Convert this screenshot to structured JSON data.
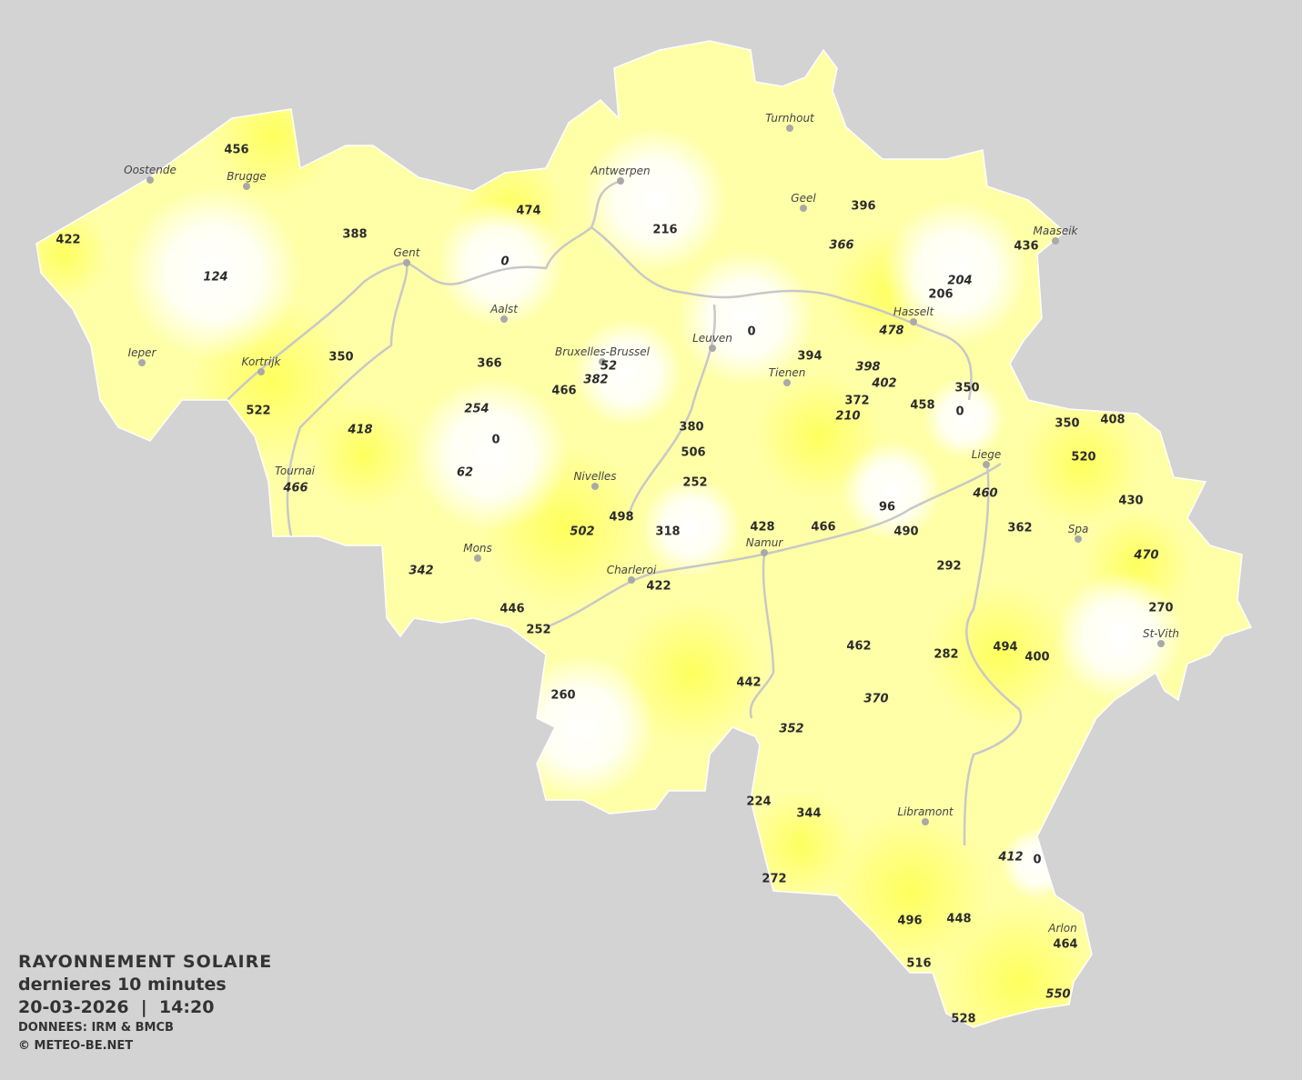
{
  "map": {
    "title": "RAYONNEMENT SOLAIRE",
    "period": "dernieres 10 minutes",
    "datetime": "20-03-2026  |  14:20",
    "source": "DONNEES: IRM & BMCB",
    "copyright": "© METEO-BE.NET",
    "colors": {
      "background": "#d3d3d3",
      "low": "#ffffff",
      "high": "#ffff66",
      "rivers": "#c8c8c8"
    },
    "cities": [
      "Oostende",
      "Brugge",
      "Gent",
      "Antwerpen",
      "Turnhout",
      "Geel",
      "Maaseik",
      "Hasselt",
      "Leuven",
      "Tienen",
      "Aalst",
      "Bruxelles-Brussel",
      "Ieper",
      "Kortrijk",
      "Tournai",
      "Nivelles",
      "Mons",
      "Charleroi",
      "Namur",
      "Liege",
      "Spa",
      "St-Vith",
      "Libramont",
      "Arlon"
    ],
    "values": [
      {
        "v": "456"
      },
      {
        "v": "422"
      },
      {
        "v": "124",
        "italic": true
      },
      {
        "v": "388"
      },
      {
        "v": "474"
      },
      {
        "v": "0",
        "italic": true
      },
      {
        "v": "216"
      },
      {
        "v": "396"
      },
      {
        "v": "366",
        "italic": true
      },
      {
        "v": "436"
      },
      {
        "v": "204",
        "italic": true
      },
      {
        "v": "206"
      },
      {
        "v": "478",
        "italic": true
      },
      {
        "v": "0"
      },
      {
        "v": "394"
      },
      {
        "v": "398",
        "italic": true
      },
      {
        "v": "402",
        "italic": true
      },
      {
        "v": "372"
      },
      {
        "v": "210",
        "italic": true
      },
      {
        "v": "458"
      },
      {
        "v": "350"
      },
      {
        "v": "0"
      },
      {
        "v": "350"
      },
      {
        "v": "366"
      },
      {
        "v": "52",
        "italic": true
      },
      {
        "v": "382",
        "italic": true
      },
      {
        "v": "466"
      },
      {
        "v": "522"
      },
      {
        "v": "418",
        "italic": true
      },
      {
        "v": "254",
        "italic": true
      },
      {
        "v": "0"
      },
      {
        "v": "62",
        "italic": true
      },
      {
        "v": "466",
        "italic": true
      },
      {
        "v": "380"
      },
      {
        "v": "506"
      },
      {
        "v": "252"
      },
      {
        "v": "498"
      },
      {
        "v": "502",
        "italic": true
      },
      {
        "v": "318"
      },
      {
        "v": "428"
      },
      {
        "v": "466"
      },
      {
        "v": "96"
      },
      {
        "v": "490"
      },
      {
        "v": "460",
        "italic": true
      },
      {
        "v": "350"
      },
      {
        "v": "408"
      },
      {
        "v": "520"
      },
      {
        "v": "430"
      },
      {
        "v": "362"
      },
      {
        "v": "470",
        "italic": true
      },
      {
        "v": "292"
      },
      {
        "v": "270"
      },
      {
        "v": "342",
        "italic": true
      },
      {
        "v": "422"
      },
      {
        "v": "446"
      },
      {
        "v": "252"
      },
      {
        "v": "462"
      },
      {
        "v": "282"
      },
      {
        "v": "494"
      },
      {
        "v": "400"
      },
      {
        "v": "442"
      },
      {
        "v": "260"
      },
      {
        "v": "370",
        "italic": true
      },
      {
        "v": "352",
        "italic": true
      },
      {
        "v": "224"
      },
      {
        "v": "344"
      },
      {
        "v": "412",
        "italic": true
      },
      {
        "v": "0"
      },
      {
        "v": "272"
      },
      {
        "v": "496"
      },
      {
        "v": "448"
      },
      {
        "v": "464"
      },
      {
        "v": "516"
      },
      {
        "v": "550",
        "italic": true
      },
      {
        "v": "528"
      }
    ]
  }
}
